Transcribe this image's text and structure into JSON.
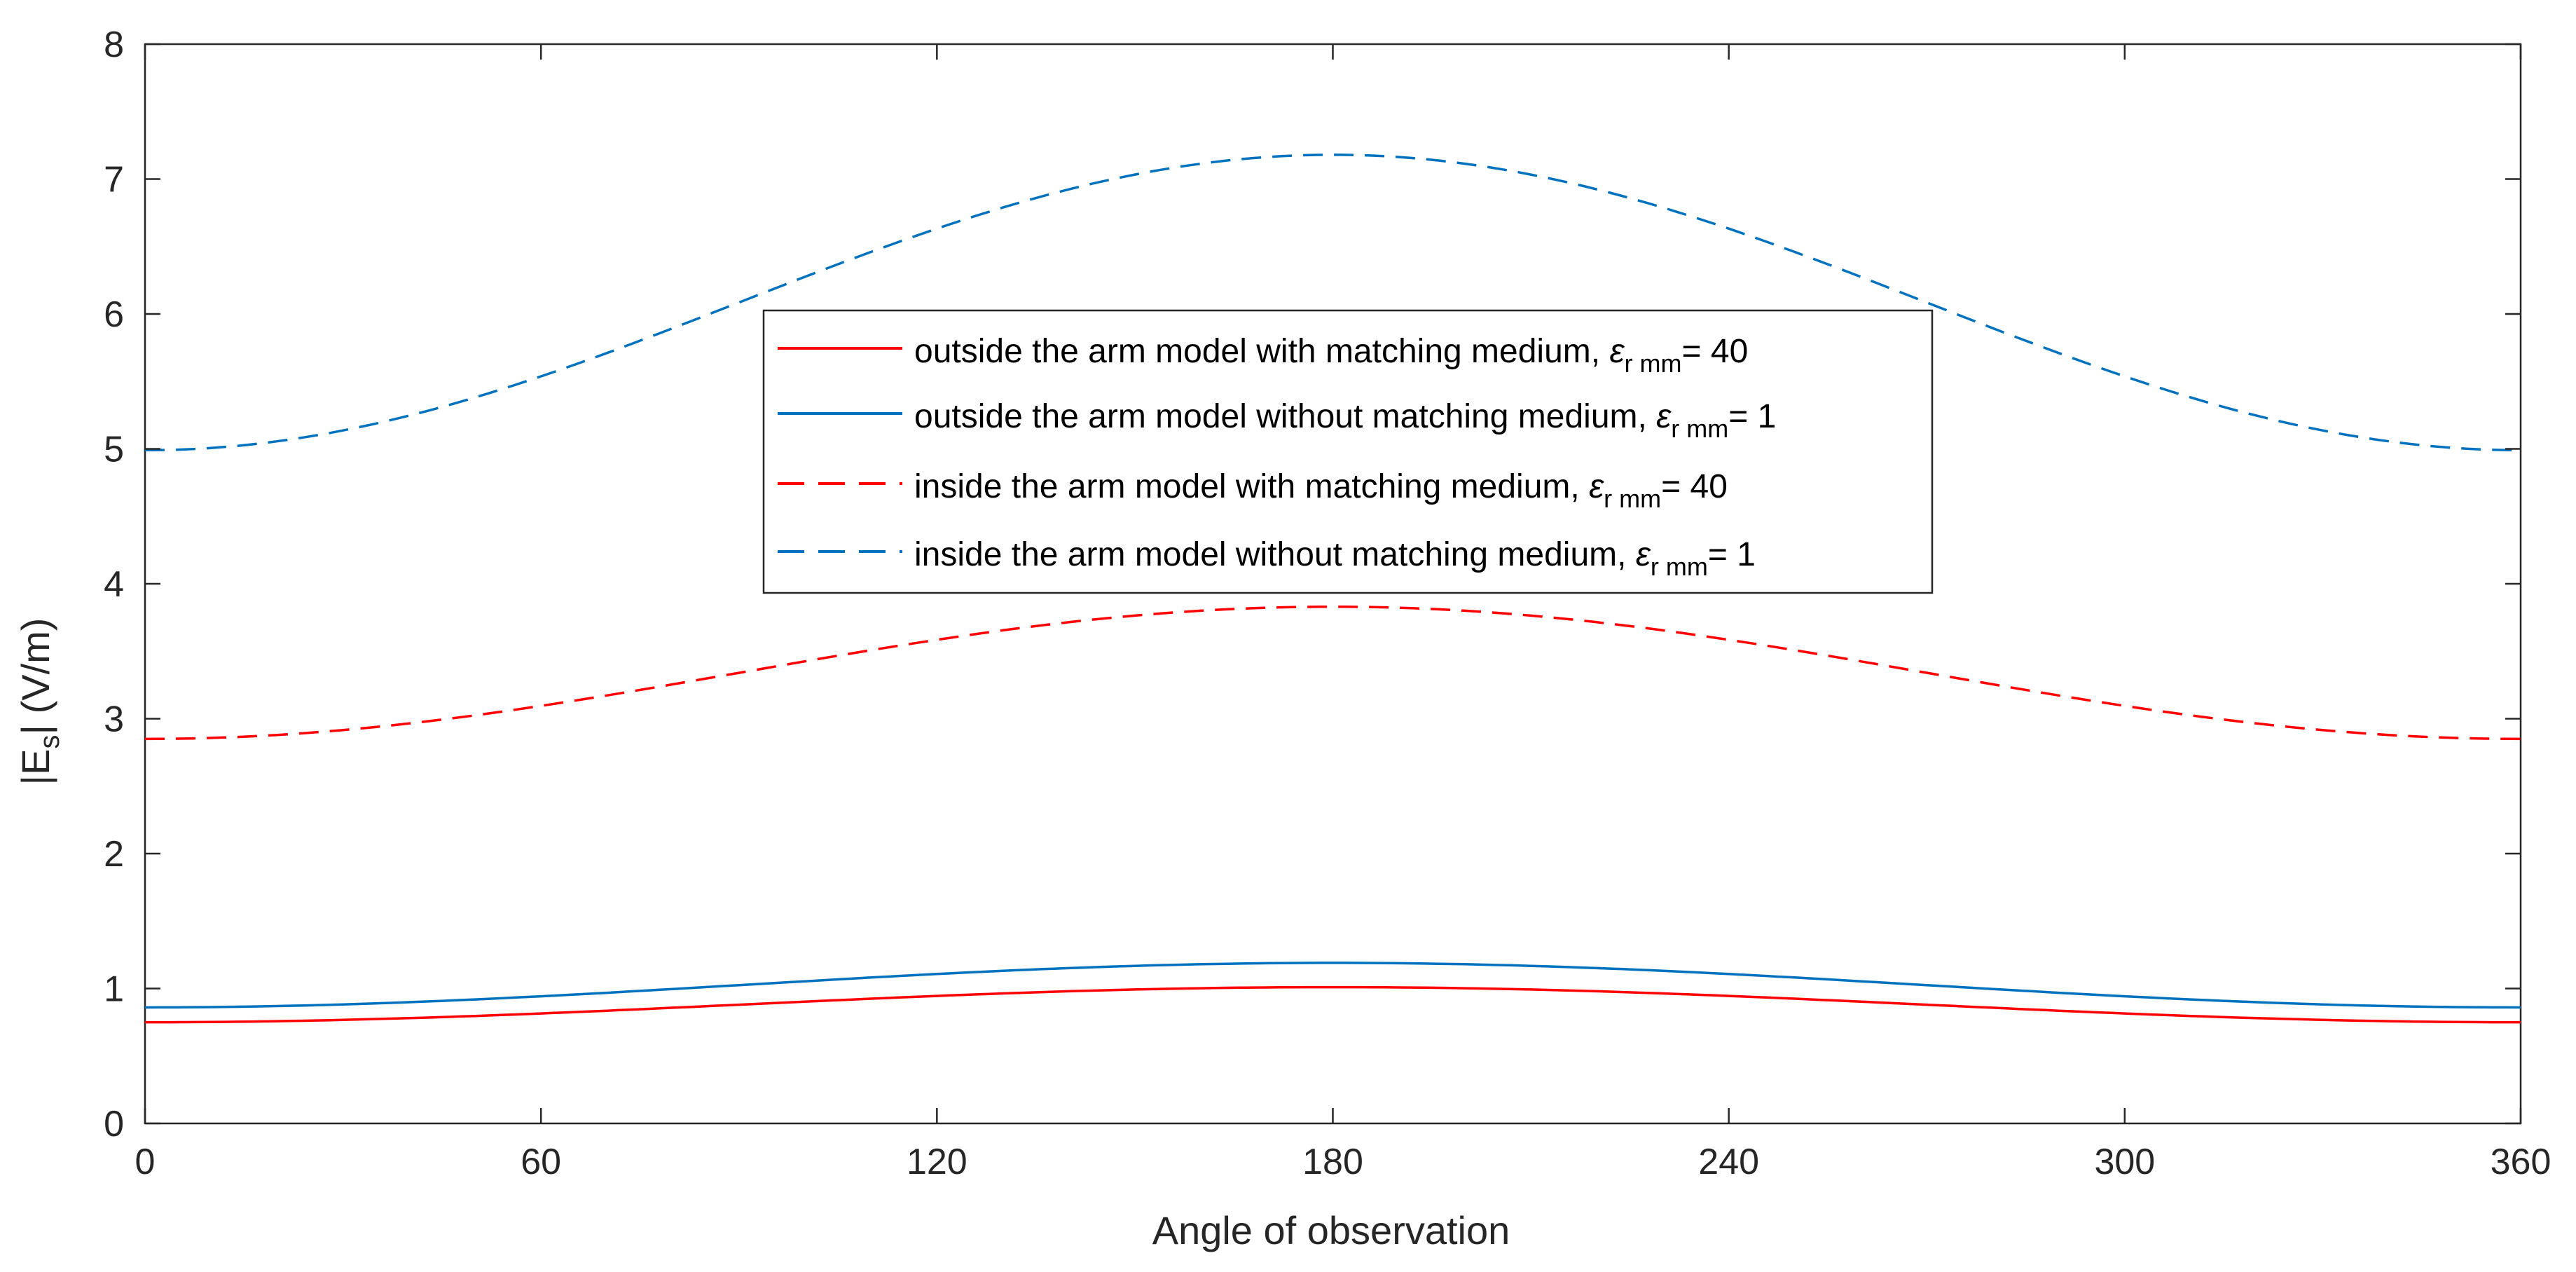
{
  "chart_data": {
    "type": "line",
    "title": "",
    "xlabel": "Angle of observation",
    "ylabel_main": "|E",
    "ylabel_sub": "s",
    "ylabel_end": "|  (V/m)",
    "xlim": [
      0,
      360
    ],
    "ylim": [
      0,
      8
    ],
    "xticks": [
      0,
      60,
      120,
      180,
      240,
      300,
      360
    ],
    "yticks": [
      0,
      1,
      2,
      3,
      4,
      5,
      6,
      7,
      8
    ],
    "grid": false,
    "legend_position": "center",
    "series": [
      {
        "name": "outside the arm model with matching medium,",
        "eps_symbol": "ε",
        "eps_sub": "r mm",
        "eps_value": "= 40",
        "color": "#ff0000",
        "style": "solid",
        "min": 0.75,
        "max": 1.01,
        "peak_x": 180
      },
      {
        "name": "outside the arm model without matching medium,",
        "eps_symbol": "ε",
        "eps_sub": "r mm",
        "eps_value": "= 1",
        "color": "#0072bd",
        "style": "solid",
        "min": 0.86,
        "max": 1.19,
        "peak_x": 180
      },
      {
        "name": "inside the arm model with matching medium,",
        "eps_symbol": "ε",
        "eps_sub": "r mm",
        "eps_value": "= 40",
        "color": "#ff0000",
        "style": "dashed",
        "min": 2.85,
        "max": 3.83,
        "peak_x": 180
      },
      {
        "name": "inside the arm model without matching medium,",
        "eps_symbol": "ε",
        "eps_sub": "r mm",
        "eps_value": "= 1",
        "color": "#0072bd",
        "style": "dashed",
        "min": 4.99,
        "max": 7.18,
        "peak_x": 180
      }
    ]
  }
}
